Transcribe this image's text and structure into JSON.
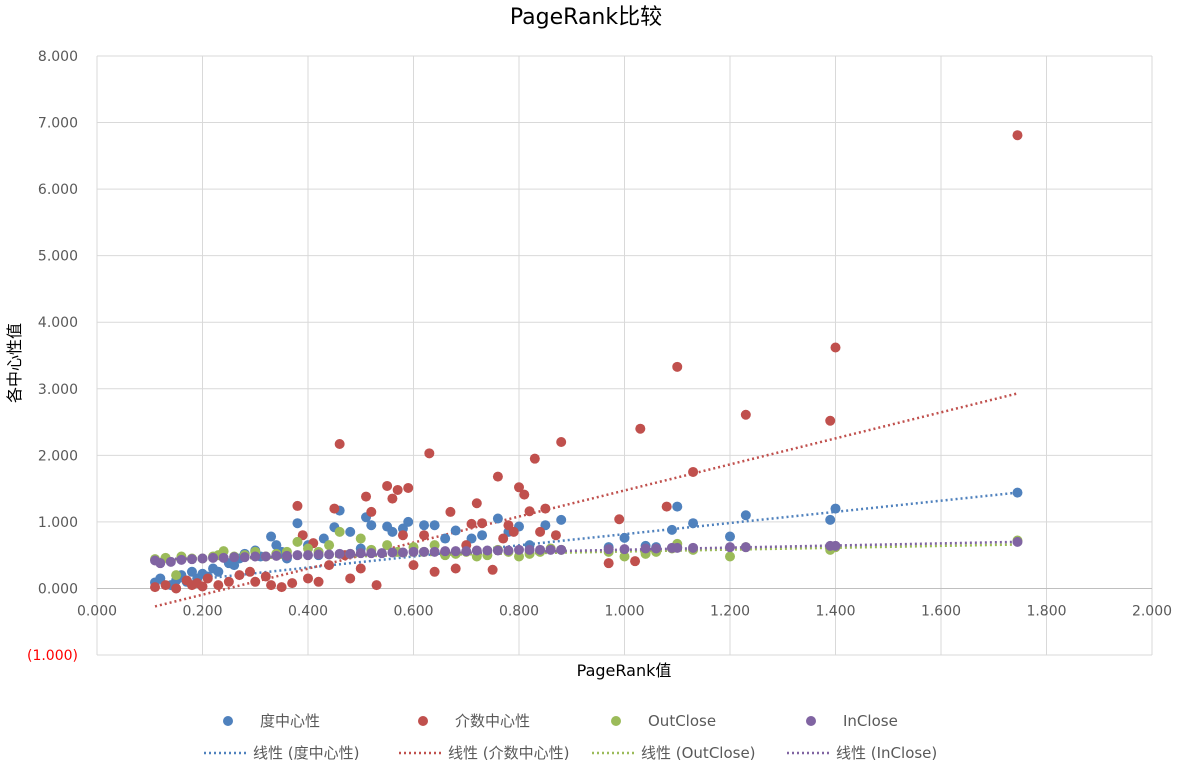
{
  "chart_data": {
    "type": "scatter",
    "title": "PageRank比较",
    "xlabel": "PageRank值",
    "ylabel": "各中心性值",
    "xlim": [
      0,
      2
    ],
    "ylim": [
      -1,
      8
    ],
    "xticks": [
      "0.000",
      "0.200",
      "0.400",
      "0.600",
      "0.800",
      "1.000",
      "1.200",
      "1.400",
      "1.600",
      "1.800",
      "2.000"
    ],
    "yticks": [
      "(1.000)",
      "0.000",
      "1.000",
      "2.000",
      "3.000",
      "4.000",
      "5.000",
      "6.000",
      "7.000",
      "8.000"
    ],
    "grid": true,
    "legend_position": "bottom",
    "series": [
      {
        "name": "度中心性",
        "color": "#4F81BD",
        "trendline_label": "线性 (度中心性)",
        "trend": {
          "x": [
            0.11,
            1.745
          ],
          "y": [
            0.07,
            1.44
          ]
        },
        "points": [
          [
            0.11,
            0.09
          ],
          [
            0.12,
            0.15
          ],
          [
            0.14,
            0.05
          ],
          [
            0.15,
            0.12
          ],
          [
            0.16,
            0.2
          ],
          [
            0.17,
            0.1
          ],
          [
            0.18,
            0.25
          ],
          [
            0.19,
            0.15
          ],
          [
            0.2,
            0.22
          ],
          [
            0.21,
            0.18
          ],
          [
            0.22,
            0.3
          ],
          [
            0.23,
            0.25
          ],
          [
            0.25,
            0.38
          ],
          [
            0.26,
            0.35
          ],
          [
            0.27,
            0.45
          ],
          [
            0.28,
            0.52
          ],
          [
            0.3,
            0.57
          ],
          [
            0.31,
            0.48
          ],
          [
            0.33,
            0.78
          ],
          [
            0.34,
            0.65
          ],
          [
            0.35,
            0.55
          ],
          [
            0.36,
            0.45
          ],
          [
            0.38,
            0.98
          ],
          [
            0.4,
            0.65
          ],
          [
            0.42,
            0.5
          ],
          [
            0.43,
            0.75
          ],
          [
            0.45,
            0.92
          ],
          [
            0.46,
            1.17
          ],
          [
            0.48,
            0.85
          ],
          [
            0.5,
            0.6
          ],
          [
            0.51,
            1.07
          ],
          [
            0.52,
            0.95
          ],
          [
            0.55,
            0.93
          ],
          [
            0.56,
            0.85
          ],
          [
            0.58,
            0.9
          ],
          [
            0.59,
            1.0
          ],
          [
            0.62,
            0.95
          ],
          [
            0.64,
            0.95
          ],
          [
            0.66,
            0.75
          ],
          [
            0.68,
            0.87
          ],
          [
            0.71,
            0.75
          ],
          [
            0.73,
            0.8
          ],
          [
            0.76,
            1.05
          ],
          [
            0.78,
            0.85
          ],
          [
            0.8,
            0.93
          ],
          [
            0.82,
            0.65
          ],
          [
            0.85,
            0.95
          ],
          [
            0.88,
            1.03
          ],
          [
            0.97,
            0.62
          ],
          [
            1.0,
            0.76
          ],
          [
            1.04,
            0.64
          ],
          [
            1.06,
            0.62
          ],
          [
            1.09,
            0.88
          ],
          [
            1.1,
            1.23
          ],
          [
            1.13,
            0.98
          ],
          [
            1.2,
            0.78
          ],
          [
            1.23,
            1.1
          ],
          [
            1.4,
            1.2
          ],
          [
            1.39,
            1.03
          ],
          [
            1.745,
            1.44
          ]
        ]
      },
      {
        "name": "介数中心性",
        "color": "#C0504D",
        "trendline_label": "线性 (介数中心性)",
        "trend": {
          "x": [
            0.11,
            1.745
          ],
          "y": [
            -0.27,
            2.93
          ]
        },
        "points": [
          [
            0.11,
            0.02
          ],
          [
            0.13,
            0.05
          ],
          [
            0.15,
            0.0
          ],
          [
            0.17,
            0.12
          ],
          [
            0.18,
            0.05
          ],
          [
            0.19,
            0.08
          ],
          [
            0.2,
            0.03
          ],
          [
            0.21,
            0.15
          ],
          [
            0.23,
            0.05
          ],
          [
            0.25,
            0.1
          ],
          [
            0.27,
            0.2
          ],
          [
            0.29,
            0.25
          ],
          [
            0.3,
            0.1
          ],
          [
            0.32,
            0.18
          ],
          [
            0.33,
            0.05
          ],
          [
            0.35,
            0.02
          ],
          [
            0.37,
            0.08
          ],
          [
            0.38,
            1.24
          ],
          [
            0.39,
            0.8
          ],
          [
            0.4,
            0.15
          ],
          [
            0.41,
            0.68
          ],
          [
            0.42,
            0.1
          ],
          [
            0.44,
            0.35
          ],
          [
            0.45,
            1.2
          ],
          [
            0.46,
            2.17
          ],
          [
            0.47,
            0.5
          ],
          [
            0.48,
            0.15
          ],
          [
            0.5,
            0.3
          ],
          [
            0.51,
            1.38
          ],
          [
            0.52,
            1.15
          ],
          [
            0.53,
            0.05
          ],
          [
            0.55,
            1.54
          ],
          [
            0.56,
            1.35
          ],
          [
            0.57,
            1.48
          ],
          [
            0.58,
            0.8
          ],
          [
            0.59,
            1.51
          ],
          [
            0.6,
            0.35
          ],
          [
            0.62,
            0.8
          ],
          [
            0.63,
            2.03
          ],
          [
            0.64,
            0.25
          ],
          [
            0.66,
            0.55
          ],
          [
            0.67,
            1.15
          ],
          [
            0.68,
            0.3
          ],
          [
            0.7,
            0.65
          ],
          [
            0.71,
            0.97
          ],
          [
            0.72,
            1.28
          ],
          [
            0.73,
            0.98
          ],
          [
            0.75,
            0.28
          ],
          [
            0.76,
            1.68
          ],
          [
            0.77,
            0.75
          ],
          [
            0.78,
            0.95
          ],
          [
            0.79,
            0.85
          ],
          [
            0.8,
            1.52
          ],
          [
            0.81,
            1.41
          ],
          [
            0.82,
            1.16
          ],
          [
            0.83,
            1.95
          ],
          [
            0.84,
            0.85
          ],
          [
            0.85,
            1.2
          ],
          [
            0.87,
            0.8
          ],
          [
            0.88,
            2.2
          ],
          [
            0.97,
            0.38
          ],
          [
            0.99,
            1.04
          ],
          [
            1.02,
            0.41
          ],
          [
            1.03,
            2.4
          ],
          [
            1.08,
            1.23
          ],
          [
            1.1,
            3.33
          ],
          [
            1.13,
            1.75
          ],
          [
            1.23,
            2.61
          ],
          [
            1.39,
            2.52
          ],
          [
            1.4,
            3.62
          ],
          [
            1.745,
            6.81
          ]
        ]
      },
      {
        "name": "OutClose",
        "color": "#9BBB59",
        "trendline_label": "线性 (OutClose)",
        "trend": {
          "x": [
            0.11,
            1.745
          ],
          "y": [
            0.43,
            0.66
          ]
        },
        "points": [
          [
            0.11,
            0.44
          ],
          [
            0.13,
            0.46
          ],
          [
            0.15,
            0.2
          ],
          [
            0.16,
            0.48
          ],
          [
            0.18,
            0.45
          ],
          [
            0.2,
            0.45
          ],
          [
            0.22,
            0.48
          ],
          [
            0.23,
            0.5
          ],
          [
            0.24,
            0.56
          ],
          [
            0.26,
            0.48
          ],
          [
            0.28,
            0.5
          ],
          [
            0.3,
            0.55
          ],
          [
            0.32,
            0.48
          ],
          [
            0.34,
            0.52
          ],
          [
            0.36,
            0.55
          ],
          [
            0.38,
            0.7
          ],
          [
            0.4,
            0.6
          ],
          [
            0.42,
            0.55
          ],
          [
            0.44,
            0.65
          ],
          [
            0.46,
            0.85
          ],
          [
            0.48,
            0.52
          ],
          [
            0.5,
            0.75
          ],
          [
            0.52,
            0.58
          ],
          [
            0.55,
            0.65
          ],
          [
            0.57,
            0.55
          ],
          [
            0.6,
            0.62
          ],
          [
            0.62,
            0.55
          ],
          [
            0.64,
            0.65
          ],
          [
            0.66,
            0.5
          ],
          [
            0.68,
            0.52
          ],
          [
            0.7,
            0.55
          ],
          [
            0.72,
            0.48
          ],
          [
            0.74,
            0.5
          ],
          [
            0.76,
            0.58
          ],
          [
            0.78,
            0.55
          ],
          [
            0.8,
            0.48
          ],
          [
            0.82,
            0.52
          ],
          [
            0.84,
            0.55
          ],
          [
            0.86,
            0.6
          ],
          [
            0.88,
            0.58
          ],
          [
            0.97,
            0.55
          ],
          [
            1.0,
            0.48
          ],
          [
            1.04,
            0.52
          ],
          [
            1.06,
            0.55
          ],
          [
            1.09,
            0.6
          ],
          [
            1.1,
            0.67
          ],
          [
            1.13,
            0.58
          ],
          [
            1.2,
            0.48
          ],
          [
            1.23,
            0.62
          ],
          [
            1.39,
            0.58
          ],
          [
            1.4,
            0.62
          ],
          [
            1.745,
            0.72
          ]
        ]
      },
      {
        "name": "InClose",
        "color": "#8064A2",
        "trendline_label": "线性 (InClose)",
        "trend": {
          "x": [
            0.11,
            1.745
          ],
          "y": [
            0.44,
            0.7
          ]
        },
        "points": [
          [
            0.11,
            0.42
          ],
          [
            0.12,
            0.38
          ],
          [
            0.14,
            0.4
          ],
          [
            0.16,
            0.43
          ],
          [
            0.18,
            0.44
          ],
          [
            0.2,
            0.45
          ],
          [
            0.22,
            0.46
          ],
          [
            0.24,
            0.46
          ],
          [
            0.26,
            0.47
          ],
          [
            0.28,
            0.47
          ],
          [
            0.3,
            0.48
          ],
          [
            0.32,
            0.48
          ],
          [
            0.34,
            0.49
          ],
          [
            0.36,
            0.49
          ],
          [
            0.38,
            0.5
          ],
          [
            0.4,
            0.5
          ],
          [
            0.42,
            0.51
          ],
          [
            0.44,
            0.51
          ],
          [
            0.46,
            0.52
          ],
          [
            0.48,
            0.52
          ],
          [
            0.5,
            0.53
          ],
          [
            0.52,
            0.53
          ],
          [
            0.54,
            0.53
          ],
          [
            0.56,
            0.54
          ],
          [
            0.58,
            0.54
          ],
          [
            0.6,
            0.55
          ],
          [
            0.62,
            0.55
          ],
          [
            0.64,
            0.55
          ],
          [
            0.66,
            0.56
          ],
          [
            0.68,
            0.56
          ],
          [
            0.7,
            0.56
          ],
          [
            0.72,
            0.57
          ],
          [
            0.74,
            0.57
          ],
          [
            0.76,
            0.57
          ],
          [
            0.78,
            0.57
          ],
          [
            0.8,
            0.58
          ],
          [
            0.82,
            0.58
          ],
          [
            0.84,
            0.58
          ],
          [
            0.86,
            0.58
          ],
          [
            0.88,
            0.58
          ],
          [
            0.97,
            0.59
          ],
          [
            1.0,
            0.59
          ],
          [
            1.04,
            0.6
          ],
          [
            1.06,
            0.6
          ],
          [
            1.09,
            0.61
          ],
          [
            1.1,
            0.61
          ],
          [
            1.13,
            0.61
          ],
          [
            1.2,
            0.62
          ],
          [
            1.23,
            0.62
          ],
          [
            1.39,
            0.64
          ],
          [
            1.4,
            0.64
          ],
          [
            1.745,
            0.7
          ]
        ]
      }
    ]
  }
}
